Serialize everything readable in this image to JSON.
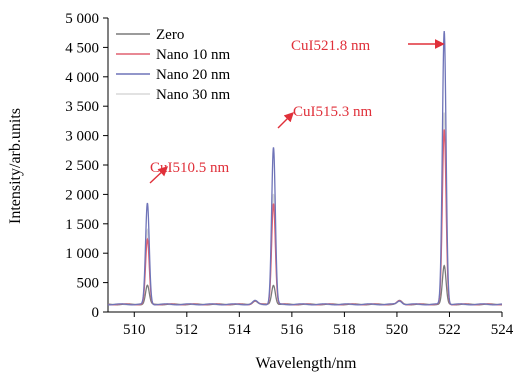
{
  "chart_data": {
    "type": "line",
    "xlabel": "Wavelength/nm",
    "ylabel": "Intensity/arb.units",
    "xlim": [
      509,
      524
    ],
    "ylim": [
      0,
      5000
    ],
    "xticks": [
      510,
      512,
      514,
      516,
      518,
      520,
      522,
      524
    ],
    "yticks": [
      0,
      500,
      1000,
      1500,
      2000,
      2500,
      3000,
      3500,
      4000,
      4500,
      5000
    ],
    "ytick_labels": [
      "0",
      "500",
      "1 000",
      "1 500",
      "2 000",
      "2 500",
      "3 000",
      "3 500",
      "4 000",
      "4 500",
      "5 000"
    ],
    "legend_position": "top-left",
    "baseline": 130,
    "peak_centers": [
      510.5,
      515.3,
      521.8
    ],
    "peak_width": 0.07,
    "series": [
      {
        "name": "Zero",
        "color": "#7a7a7a",
        "peaks": [
          450,
          460,
          780
        ]
      },
      {
        "name": "Nano 10 nm",
        "color": "#e06070",
        "peaks": [
          1230,
          1850,
          3100
        ]
      },
      {
        "name": "Nano 20 nm",
        "color": "#6f74b8",
        "peaks": [
          1850,
          2800,
          4780
        ]
      },
      {
        "name": "Nano 30 nm",
        "color": "#d9d9d9",
        "peaks": [
          1400,
          2000,
          3400
        ]
      }
    ],
    "annotations": [
      {
        "text": "CuI510.5 nm",
        "color": "#e0303a",
        "x": 510.5
      },
      {
        "text": "CuI515.3 nm",
        "color": "#e0303a",
        "x": 515.3
      },
      {
        "text": "CuI521.8 nm",
        "color": "#e0303a",
        "x": 521.8
      }
    ]
  }
}
